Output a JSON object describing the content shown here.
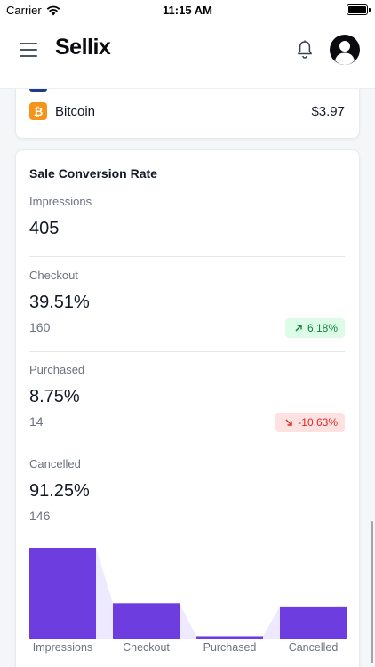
{
  "status_bar": {
    "carrier": "Carrier",
    "time": "11:15 AM"
  },
  "header": {
    "brand": "Sellix",
    "icons": {
      "menu": "menu-icon",
      "notifications": "bell-icon",
      "profile": "user-avatar-icon"
    }
  },
  "payment_method": {
    "name": "Bitcoin",
    "amount": "$3.97",
    "icon_glyph": "₿",
    "color": "#f7931a"
  },
  "conversion": {
    "title": "Sale Conversion Rate",
    "metrics": [
      {
        "label": "Impressions",
        "value": "405"
      },
      {
        "label": "Checkout",
        "value": "39.51%",
        "count": "160",
        "change": "6.18%",
        "trend": "up"
      },
      {
        "label": "Purchased",
        "value": "8.75%",
        "count": "14",
        "change": "-10.63%",
        "trend": "down"
      },
      {
        "label": "Cancelled",
        "value": "91.25%",
        "count": "146"
      }
    ]
  },
  "chart_data": {
    "type": "bar",
    "categories": [
      "Impressions",
      "Checkout",
      "Purchased",
      "Cancelled"
    ],
    "values": [
      405,
      160,
      14,
      146
    ],
    "ylim": [
      0,
      405
    ],
    "bar_color": "#6d3de0",
    "connector_color": "#ede9fe",
    "legend": "none",
    "grid": false
  }
}
